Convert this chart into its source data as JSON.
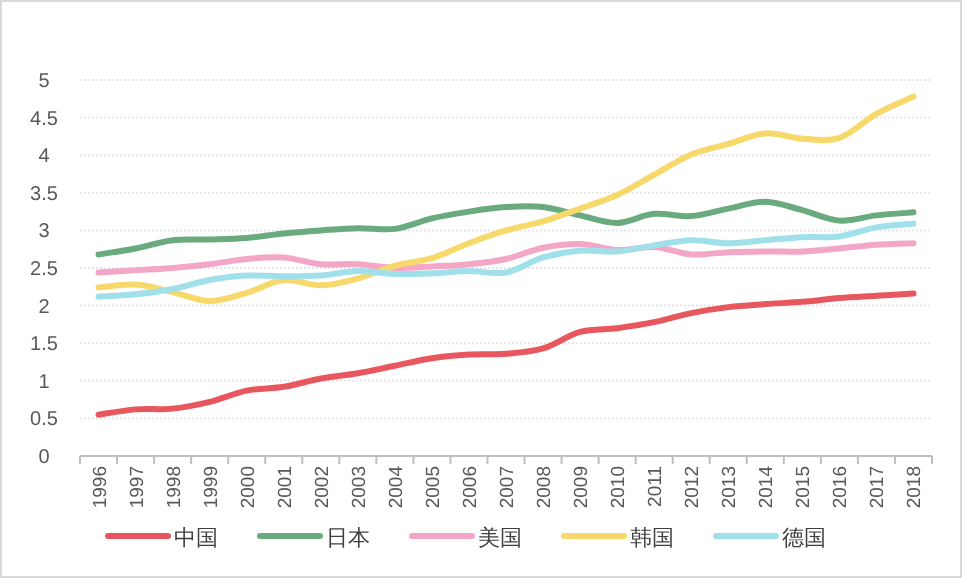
{
  "chart_data": {
    "type": "line",
    "categories": [
      "1996",
      "1997",
      "1998",
      "1999",
      "2000",
      "2001",
      "2002",
      "2003",
      "2004",
      "2005",
      "2006",
      "2007",
      "2008",
      "2009",
      "2010",
      "2011",
      "2012",
      "2013",
      "2014",
      "2015",
      "2016",
      "2017",
      "2018"
    ],
    "ylim": [
      0,
      5
    ],
    "yticks": [
      0,
      0.5,
      1,
      1.5,
      2,
      2.5,
      3,
      3.5,
      4,
      4.5,
      5
    ],
    "grid": "y",
    "legend": "bottom",
    "marker": "none",
    "line_style": "solid",
    "series": [
      {
        "name": "中国",
        "color": "#e8575e",
        "values": [
          0.55,
          0.62,
          0.63,
          0.72,
          0.87,
          0.92,
          1.03,
          1.1,
          1.2,
          1.3,
          1.35,
          1.36,
          1.43,
          1.65,
          1.7,
          1.78,
          1.9,
          1.98,
          2.02,
          2.05,
          2.1,
          2.13,
          2.16
        ]
      },
      {
        "name": "日本",
        "color": "#6aaa7f",
        "values": [
          2.68,
          2.76,
          2.87,
          2.88,
          2.9,
          2.96,
          3.0,
          3.03,
          3.02,
          3.16,
          3.25,
          3.31,
          3.31,
          3.2,
          3.1,
          3.22,
          3.19,
          3.29,
          3.38,
          3.27,
          3.13,
          3.2,
          3.24
        ]
      },
      {
        "name": "美国",
        "color": "#f4a6c6",
        "values": [
          2.44,
          2.47,
          2.5,
          2.55,
          2.62,
          2.64,
          2.55,
          2.55,
          2.5,
          2.52,
          2.55,
          2.62,
          2.77,
          2.82,
          2.74,
          2.78,
          2.68,
          2.71,
          2.72,
          2.72,
          2.76,
          2.81,
          2.83
        ]
      },
      {
        "name": "韩国",
        "color": "#f7d96b",
        "values": [
          2.24,
          2.28,
          2.18,
          2.06,
          2.17,
          2.34,
          2.27,
          2.36,
          2.53,
          2.63,
          2.83,
          3.0,
          3.12,
          3.29,
          3.47,
          3.74,
          4.01,
          4.15,
          4.29,
          4.22,
          4.23,
          4.55,
          4.78
        ]
      },
      {
        "name": "德国",
        "color": "#9fe0ea",
        "values": [
          2.12,
          2.15,
          2.22,
          2.34,
          2.4,
          2.39,
          2.4,
          2.46,
          2.42,
          2.43,
          2.46,
          2.44,
          2.64,
          2.73,
          2.72,
          2.8,
          2.87,
          2.83,
          2.87,
          2.91,
          2.92,
          3.04,
          3.09
        ]
      }
    ]
  }
}
